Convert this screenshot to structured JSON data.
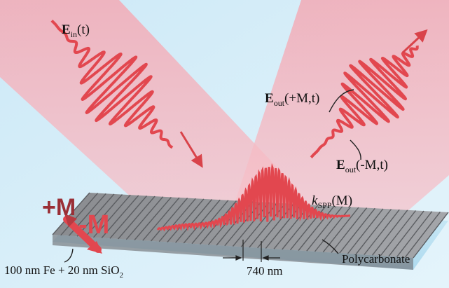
{
  "colors": {
    "background_light_blue": "#d3ecf8",
    "beam_pink": "#f4b7c0",
    "pulse_red": "#e2474f",
    "grating_gray": "#7b7d80",
    "substrate_blue": "#bfe3f2"
  },
  "labels": {
    "incident_field": "E",
    "incident_field_sub": "in",
    "incident_field_arg": "(t)",
    "out_plus_field": "E",
    "out_plus_sub": "out",
    "out_plus_arg": "(+M,t)",
    "out_minus_field": "E",
    "out_minus_sub": "out",
    "out_minus_arg": "(-M,t)",
    "kspp_k": "k",
    "kspp_sub": "SPP",
    "kspp_arg": "(M)",
    "plus_m": "+M",
    "minus_m": "-M",
    "period": "740 nm",
    "substrate": "Polycarbonate",
    "film_prefix": "100 nm Fe + 20 nm SiO",
    "film_sub": "2"
  },
  "icons": {
    "incident-arrow": "arrow",
    "reflected-arrow": "arrow",
    "magnetization-arrow": "double-arrow"
  }
}
